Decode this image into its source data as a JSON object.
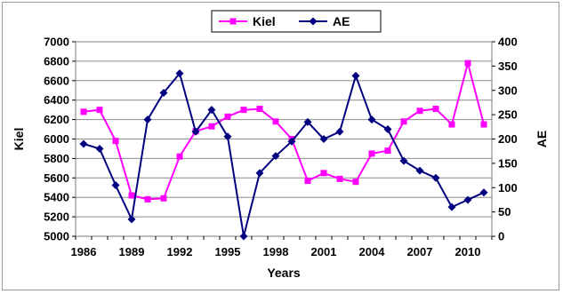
{
  "chart_data": {
    "type": "line",
    "title": "",
    "xlabel": "Years",
    "ylabel_left": "Kiel",
    "ylabel_right": "AE",
    "x_tick_labels": [
      "1986",
      "1989",
      "1992",
      "1995",
      "1998",
      "2001",
      "2004",
      "2007",
      "2010"
    ],
    "xlim": [
      1986,
      2011
    ],
    "ylim_left": [
      5000,
      7000
    ],
    "ylim_right": [
      0,
      400
    ],
    "yticks_left": [
      "5000",
      "5200",
      "5400",
      "5600",
      "5800",
      "6000",
      "6200",
      "6400",
      "6600",
      "6800",
      "7000"
    ],
    "yticks_right": [
      "0",
      "50",
      "100",
      "150",
      "200",
      "250",
      "300",
      "350",
      "400"
    ],
    "legend_position": "top-center",
    "grid": "horizontal",
    "x": [
      1986,
      1987,
      1988,
      1989,
      1990,
      1991,
      1992,
      1993,
      1994,
      1995,
      1996,
      1997,
      1998,
      1999,
      2000,
      2001,
      2002,
      2003,
      2004,
      2005,
      2006,
      2007,
      2008,
      2009,
      2010,
      2011
    ],
    "series": [
      {
        "name": "Kiel",
        "axis": "left",
        "color": "#ff00ff",
        "marker": "square",
        "values": [
          6280,
          6300,
          5980,
          5420,
          5380,
          5390,
          5820,
          6080,
          6130,
          6230,
          6300,
          6310,
          6180,
          6000,
          5570,
          5650,
          5590,
          5560,
          5850,
          5880,
          6180,
          6290,
          6310,
          6150,
          6780,
          6150
        ]
      },
      {
        "name": "AE",
        "axis": "right",
        "color": "#000080",
        "marker": "diamond",
        "values": [
          190,
          180,
          105,
          35,
          240,
          295,
          335,
          215,
          260,
          205,
          0,
          130,
          165,
          195,
          235,
          200,
          215,
          330,
          240,
          220,
          155,
          135,
          120,
          60,
          75,
          90
        ]
      }
    ]
  }
}
